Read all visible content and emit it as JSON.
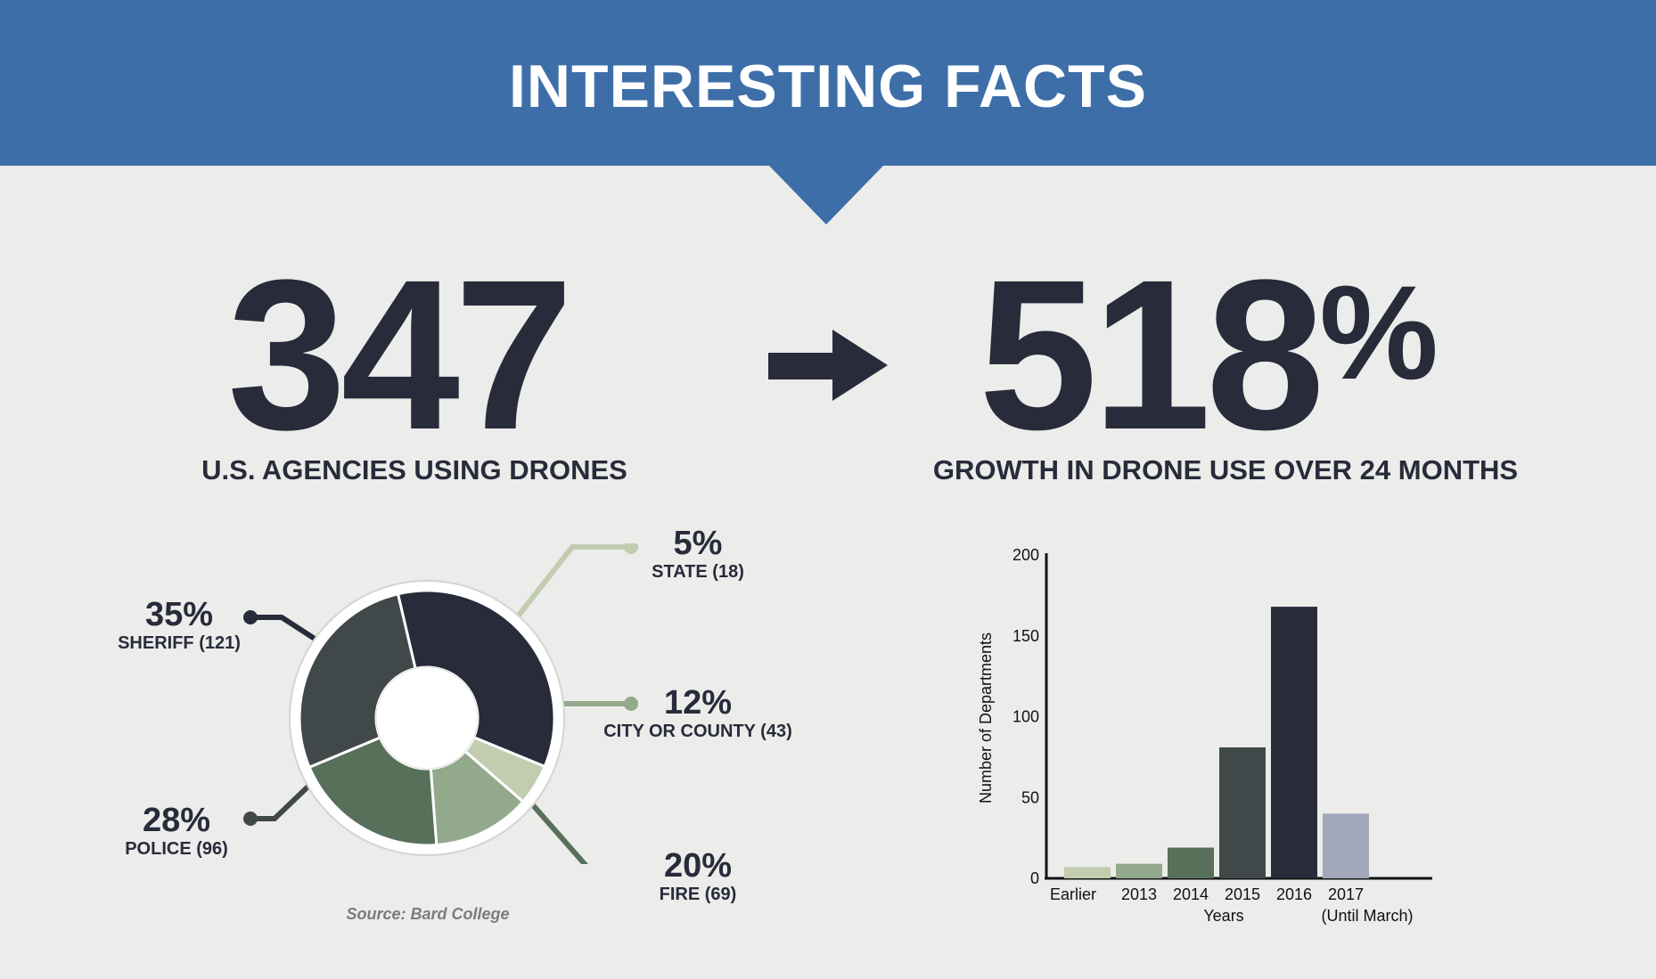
{
  "header": {
    "title": "INTERESTING FACTS"
  },
  "stats": {
    "left": {
      "value": "347",
      "caption": "U.S. AGENCIES USING DRONES"
    },
    "right": {
      "value": "518",
      "unit": "%",
      "caption": "GROWTH IN DRONE USE OVER 24 MONTHS"
    }
  },
  "source": "Source: Bard College",
  "chart_data": [
    {
      "type": "pie",
      "style": "donut",
      "slices": [
        {
          "label": "SHERIFF (121)",
          "percent_label": "35%",
          "value": 121,
          "color": "#272b3a"
        },
        {
          "label": "STATE (18)",
          "percent_label": "5%",
          "value": 18,
          "color": "#c2cdb0"
        },
        {
          "label": "CITY OR COUNTY (43)",
          "percent_label": "12%",
          "value": 43,
          "color": "#93a98b"
        },
        {
          "label": "FIRE (69)",
          "percent_label": "20%",
          "value": 69,
          "color": "#58705a"
        },
        {
          "label": "POLICE (96)",
          "percent_label": "28%",
          "value": 96,
          "color": "#404849"
        }
      ]
    },
    {
      "type": "bar",
      "categories": [
        "Earlier",
        "2013",
        "2014",
        "2015",
        "2016",
        "2017"
      ],
      "category_sublabels": [
        "",
        "",
        "",
        "",
        "",
        "(Until March)"
      ],
      "values": [
        7,
        9,
        19,
        81,
        168,
        40
      ],
      "colors": [
        "#c2cdb0",
        "#93a98b",
        "#58705a",
        "#404849",
        "#272b3a",
        "#a2a7ba"
      ],
      "xlabel": "Years",
      "ylabel": "Number of Departments",
      "ylim": [
        0,
        200
      ],
      "yticks": [
        0,
        50,
        100,
        150,
        200
      ],
      "grid": false
    }
  ]
}
